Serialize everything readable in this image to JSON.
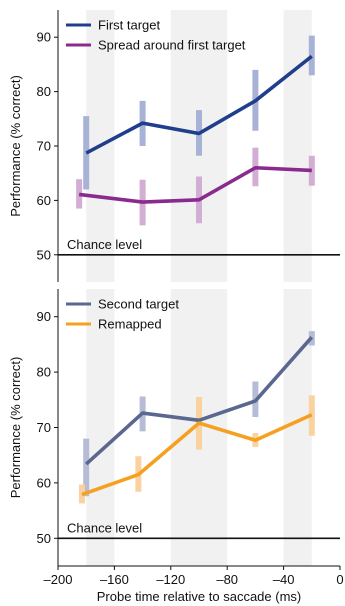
{
  "chart_data": [
    {
      "type": "line",
      "ylabel": "Performance (% correct)",
      "ylim": [
        45,
        95
      ],
      "xlim": [
        -200,
        0
      ],
      "yticks": [
        50,
        60,
        70,
        80,
        90
      ],
      "shaded_bands": [
        [
          -180,
          -160
        ],
        [
          -120,
          -80
        ],
        [
          -40,
          -20
        ]
      ],
      "reference_line": {
        "y": 50,
        "label": "Chance level"
      },
      "legend_position": "top-left",
      "series": [
        {
          "name": "First target",
          "color": "#1f3f8c",
          "err_color": "#a8b2d6",
          "x": [
            -180,
            -140,
            -100,
            -60,
            -20
          ],
          "y": [
            68.7,
            74.2,
            72.3,
            78.3,
            86.5
          ],
          "err": [
            [
              62.0,
              75.5
            ],
            [
              70.0,
              78.3
            ],
            [
              68.2,
              76.6
            ],
            [
              72.8,
              84.0
            ],
            [
              83.0,
              90.3
            ]
          ]
        },
        {
          "name": "Spread around first target",
          "color": "#8b2a8e",
          "err_color": "#d2add4",
          "x": [
            -185,
            -140,
            -100,
            -60,
            -20
          ],
          "y": [
            61.1,
            59.7,
            60.1,
            66.0,
            65.5
          ],
          "err": [
            [
              58.5,
              63.9
            ],
            [
              55.4,
              63.8
            ],
            [
              55.8,
              64.4
            ],
            [
              62.6,
              69.7
            ],
            [
              62.7,
              68.2
            ]
          ]
        }
      ]
    },
    {
      "type": "line",
      "xlabel": "Probe time relative to saccade (ms)",
      "ylabel": "Performance (% correct)",
      "ylim": [
        45,
        95
      ],
      "xlim": [
        -200,
        0
      ],
      "xticks": [
        -200,
        -160,
        -120,
        -80,
        -40,
        0
      ],
      "xtick_labels": [
        "–200",
        "–160",
        "–120",
        "–80",
        "–40",
        "0"
      ],
      "yticks": [
        50,
        60,
        70,
        80,
        90
      ],
      "shaded_bands": [
        [
          -180,
          -160
        ],
        [
          -120,
          -80
        ],
        [
          -40,
          -20
        ]
      ],
      "reference_line": {
        "y": 50,
        "label": "Chance level"
      },
      "legend_position": "top-left",
      "series": [
        {
          "name": "Second target",
          "color": "#5a6890",
          "err_color": "#b6bcd6",
          "x": [
            -180,
            -140,
            -100,
            -60,
            -20
          ],
          "y": [
            63.4,
            72.6,
            71.3,
            74.8,
            86.3
          ],
          "err": [
            [
              57.6,
              68.0
            ],
            [
              69.3,
              75.6
            ],
            [
              67.5,
              74.8
            ],
            [
              71.9,
              78.3
            ],
            [
              84.8,
              87.4
            ]
          ]
        },
        {
          "name": "Remapped",
          "color": "#f5a020",
          "err_color": "#fad2a0",
          "x": [
            -183,
            -143,
            -100,
            -60,
            -20
          ],
          "y": [
            57.9,
            61.5,
            70.8,
            67.7,
            72.3
          ],
          "err": [
            [
              56.3,
              59.7
            ],
            [
              58.4,
              64.8
            ],
            [
              66.0,
              75.5
            ],
            [
              66.5,
              69.0
            ],
            [
              68.5,
              75.8
            ]
          ]
        }
      ]
    }
  ]
}
